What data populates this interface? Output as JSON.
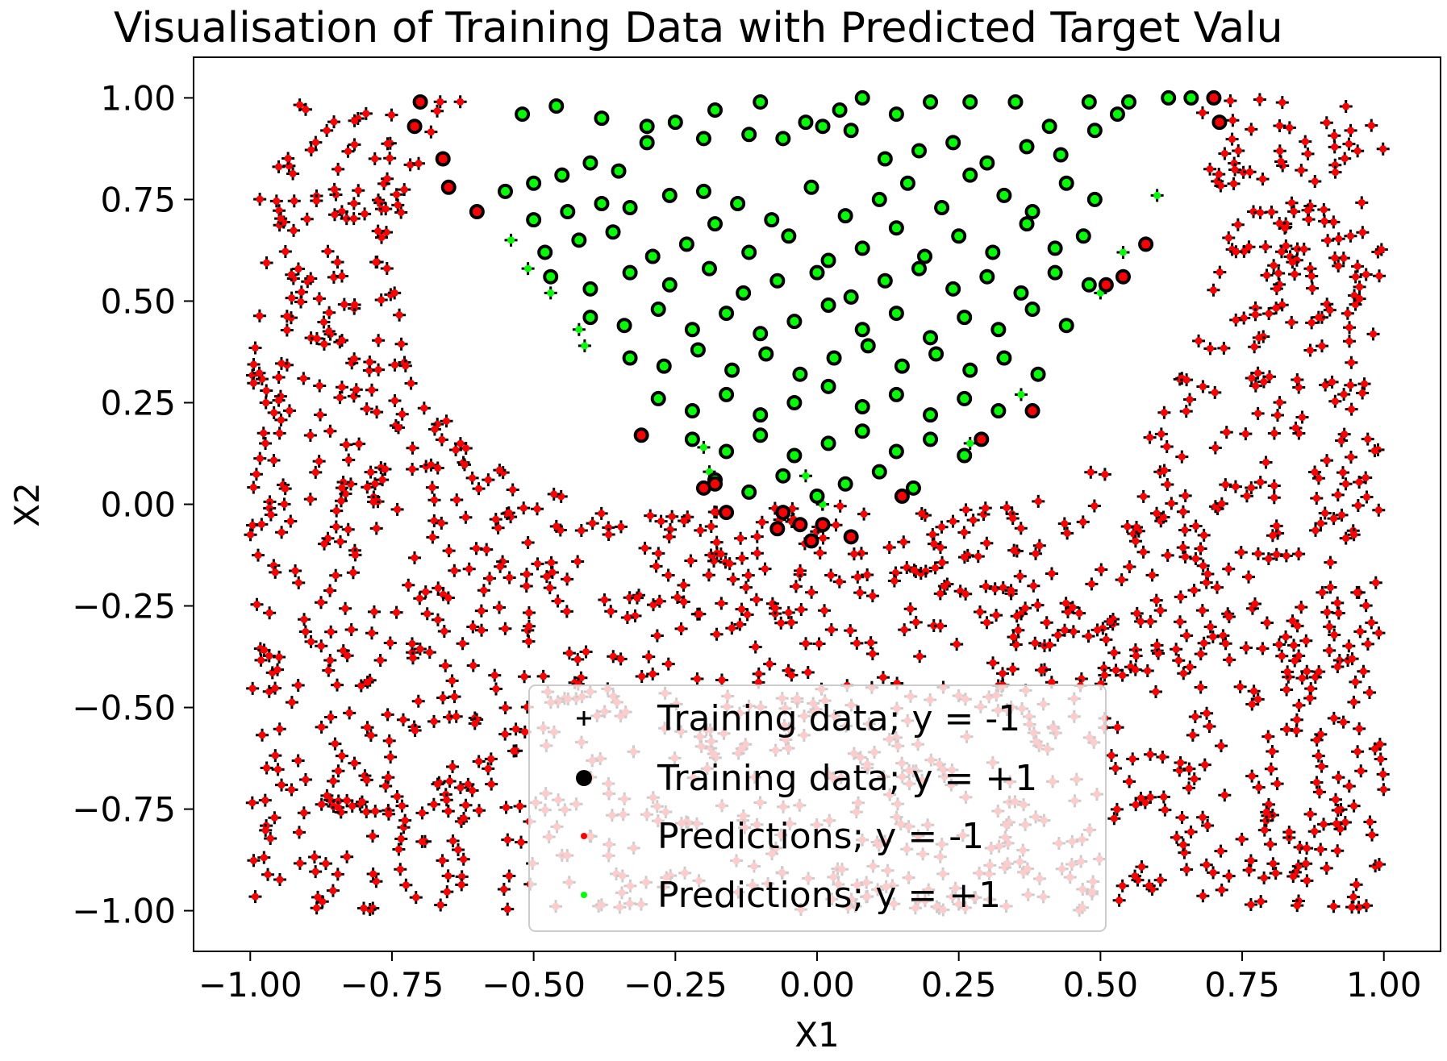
{
  "chart_data": {
    "type": "scatter",
    "title": "Visualisation of Training Data with Predicted Target Valu",
    "xlabel": "X1",
    "ylabel": "X2",
    "xlim": [
      -1.1,
      1.1
    ],
    "ylim": [
      -1.1,
      1.1
    ],
    "x_ticks": [
      -1.0,
      -0.75,
      -0.5,
      -0.25,
      0.0,
      0.25,
      0.5,
      0.75,
      1.0
    ],
    "x_tick_labels": [
      "−1.00",
      "−0.75",
      "−0.50",
      "−0.25",
      "0.00",
      "0.25",
      "0.50",
      "0.75",
      "1.00"
    ],
    "y_ticks": [
      1.0,
      0.75,
      0.5,
      0.25,
      0.0,
      -0.25,
      -0.5,
      -0.75,
      -1.0
    ],
    "y_tick_labels": [
      "1.00",
      "0.75",
      "0.50",
      "0.25",
      "0.00",
      "−0.25",
      "−0.50",
      "−0.75",
      "−1.00"
    ],
    "grid": false,
    "legend_position": "lower center",
    "colors": {
      "training_neg": "#000000",
      "training_pos": "#000000",
      "pred_neg": "#ff0000",
      "pred_pos": "#00ff00"
    },
    "legend": [
      {
        "label": "Training data; y = -1",
        "marker": "plus",
        "color": "#000000"
      },
      {
        "label": "Training data; y = +1",
        "marker": "circle",
        "color": "#000000"
      },
      {
        "label": "Predictions; y = -1",
        "marker": "dot",
        "color": "#ff0000"
      },
      {
        "label": "Predictions; y = +1",
        "marker": "dot",
        "color": "#00ff00"
      }
    ],
    "positive_examples_pred_pos": [
      [
        -0.52,
        0.96
      ],
      [
        -0.46,
        0.98
      ],
      [
        -0.38,
        0.95
      ],
      [
        -0.3,
        0.93
      ],
      [
        -0.18,
        0.97
      ],
      [
        -0.1,
        0.99
      ],
      [
        -0.02,
        0.94
      ],
      [
        0.04,
        0.97
      ],
      [
        0.08,
        1.0
      ],
      [
        0.14,
        0.96
      ],
      [
        0.2,
        0.99
      ],
      [
        0.27,
        0.99
      ],
      [
        0.35,
        0.99
      ],
      [
        0.41,
        0.93
      ],
      [
        0.48,
        0.99
      ],
      [
        0.55,
        0.99
      ],
      [
        0.62,
        1.0
      ],
      [
        0.66,
        1.0
      ],
      [
        -0.55,
        0.77
      ],
      [
        -0.5,
        0.79
      ],
      [
        -0.45,
        0.81
      ],
      [
        -0.4,
        0.84
      ],
      [
        -0.35,
        0.82
      ],
      [
        -0.3,
        0.89
      ],
      [
        -0.25,
        0.94
      ],
      [
        -0.2,
        0.9
      ],
      [
        -0.12,
        0.91
      ],
      [
        -0.06,
        0.9
      ],
      [
        0.01,
        0.93
      ],
      [
        0.06,
        0.92
      ],
      [
        0.12,
        0.85
      ],
      [
        0.18,
        0.87
      ],
      [
        0.24,
        0.89
      ],
      [
        0.3,
        0.84
      ],
      [
        0.37,
        0.88
      ],
      [
        0.43,
        0.86
      ],
      [
        0.49,
        0.92
      ],
      [
        0.53,
        0.96
      ],
      [
        -0.5,
        0.7
      ],
      [
        -0.44,
        0.72
      ],
      [
        -0.38,
        0.74
      ],
      [
        -0.33,
        0.73
      ],
      [
        -0.26,
        0.76
      ],
      [
        -0.2,
        0.77
      ],
      [
        -0.14,
        0.74
      ],
      [
        -0.08,
        0.7
      ],
      [
        -0.01,
        0.78
      ],
      [
        0.05,
        0.71
      ],
      [
        0.11,
        0.75
      ],
      [
        0.16,
        0.79
      ],
      [
        0.22,
        0.73
      ],
      [
        0.27,
        0.81
      ],
      [
        0.33,
        0.76
      ],
      [
        0.38,
        0.72
      ],
      [
        0.44,
        0.79
      ],
      [
        0.49,
        0.75
      ],
      [
        -0.48,
        0.62
      ],
      [
        -0.42,
        0.65
      ],
      [
        -0.36,
        0.67
      ],
      [
        -0.29,
        0.61
      ],
      [
        -0.23,
        0.64
      ],
      [
        -0.18,
        0.69
      ],
      [
        -0.12,
        0.62
      ],
      [
        -0.05,
        0.66
      ],
      [
        0.02,
        0.6
      ],
      [
        0.08,
        0.63
      ],
      [
        0.14,
        0.68
      ],
      [
        0.19,
        0.61
      ],
      [
        0.25,
        0.66
      ],
      [
        0.31,
        0.62
      ],
      [
        0.37,
        0.69
      ],
      [
        0.42,
        0.63
      ],
      [
        0.47,
        0.66
      ],
      [
        -0.47,
        0.56
      ],
      [
        -0.4,
        0.53
      ],
      [
        -0.33,
        0.57
      ],
      [
        -0.26,
        0.54
      ],
      [
        -0.19,
        0.58
      ],
      [
        -0.13,
        0.52
      ],
      [
        -0.07,
        0.55
      ],
      [
        0.0,
        0.57
      ],
      [
        0.06,
        0.51
      ],
      [
        0.12,
        0.55
      ],
      [
        0.18,
        0.58
      ],
      [
        0.24,
        0.53
      ],
      [
        0.3,
        0.56
      ],
      [
        0.36,
        0.52
      ],
      [
        0.42,
        0.57
      ],
      [
        0.48,
        0.54
      ],
      [
        -0.4,
        0.46
      ],
      [
        -0.34,
        0.44
      ],
      [
        -0.28,
        0.48
      ],
      [
        -0.22,
        0.43
      ],
      [
        -0.16,
        0.47
      ],
      [
        -0.1,
        0.42
      ],
      [
        -0.04,
        0.45
      ],
      [
        0.02,
        0.49
      ],
      [
        0.08,
        0.43
      ],
      [
        0.14,
        0.47
      ],
      [
        0.2,
        0.41
      ],
      [
        0.26,
        0.46
      ],
      [
        0.32,
        0.43
      ],
      [
        0.38,
        0.48
      ],
      [
        0.44,
        0.44
      ],
      [
        -0.33,
        0.36
      ],
      [
        -0.27,
        0.34
      ],
      [
        -0.21,
        0.38
      ],
      [
        -0.15,
        0.33
      ],
      [
        -0.09,
        0.37
      ],
      [
        -0.03,
        0.32
      ],
      [
        0.03,
        0.36
      ],
      [
        0.09,
        0.39
      ],
      [
        0.15,
        0.34
      ],
      [
        0.21,
        0.37
      ],
      [
        0.27,
        0.33
      ],
      [
        0.33,
        0.36
      ],
      [
        0.39,
        0.32
      ],
      [
        -0.28,
        0.26
      ],
      [
        -0.22,
        0.23
      ],
      [
        -0.16,
        0.27
      ],
      [
        -0.1,
        0.22
      ],
      [
        -0.04,
        0.25
      ],
      [
        0.02,
        0.29
      ],
      [
        0.08,
        0.24
      ],
      [
        0.14,
        0.27
      ],
      [
        0.2,
        0.22
      ],
      [
        0.26,
        0.26
      ],
      [
        0.32,
        0.23
      ],
      [
        -0.22,
        0.16
      ],
      [
        -0.16,
        0.13
      ],
      [
        -0.1,
        0.17
      ],
      [
        -0.04,
        0.12
      ],
      [
        0.02,
        0.15
      ],
      [
        0.08,
        0.18
      ],
      [
        0.14,
        0.13
      ],
      [
        0.2,
        0.16
      ],
      [
        0.26,
        0.12
      ],
      [
        -0.18,
        0.06
      ],
      [
        -0.12,
        0.03
      ],
      [
        -0.06,
        0.07
      ],
      [
        0.0,
        0.02
      ],
      [
        0.05,
        0.05
      ],
      [
        0.11,
        0.08
      ],
      [
        0.17,
        0.04
      ]
    ],
    "positive_examples_pred_neg": [
      [
        -0.7,
        0.99
      ],
      [
        -0.71,
        0.93
      ],
      [
        -0.66,
        0.85
      ],
      [
        -0.65,
        0.78
      ],
      [
        -0.6,
        0.72
      ],
      [
        0.7,
        1.0
      ],
      [
        0.71,
        0.94
      ],
      [
        0.58,
        0.64
      ],
      [
        0.54,
        0.56
      ],
      [
        0.51,
        0.54
      ],
      [
        0.38,
        0.23
      ],
      [
        0.29,
        0.16
      ],
      [
        -0.31,
        0.17
      ],
      [
        -0.2,
        0.04
      ],
      [
        -0.18,
        0.05
      ],
      [
        -0.16,
        -0.02
      ],
      [
        -0.07,
        -0.06
      ],
      [
        -0.06,
        -0.02
      ],
      [
        -0.03,
        -0.05
      ],
      [
        -0.01,
        -0.09
      ],
      [
        0.01,
        -0.05
      ],
      [
        0.06,
        -0.08
      ],
      [
        0.15,
        0.02
      ]
    ],
    "negative_examples_pred_pos": [
      [
        -0.54,
        0.65
      ],
      [
        -0.51,
        0.58
      ],
      [
        -0.47,
        0.52
      ],
      [
        -0.42,
        0.43
      ],
      [
        -0.41,
        0.39
      ],
      [
        0.36,
        0.27
      ],
      [
        0.27,
        0.15
      ],
      [
        0.6,
        0.76
      ],
      [
        0.5,
        0.52
      ],
      [
        0.54,
        0.62
      ],
      [
        -0.2,
        0.14
      ],
      [
        -0.02,
        0.07
      ],
      [
        0.01,
        0.0
      ],
      [
        -0.19,
        0.08
      ]
    ],
    "negative_examples_pred_neg_region": {
      "description": "dense uniform cloud of y=-1 training points covering [-1,1]x[-1,1] outside the positive arc region",
      "count_approx": 1450
    }
  }
}
